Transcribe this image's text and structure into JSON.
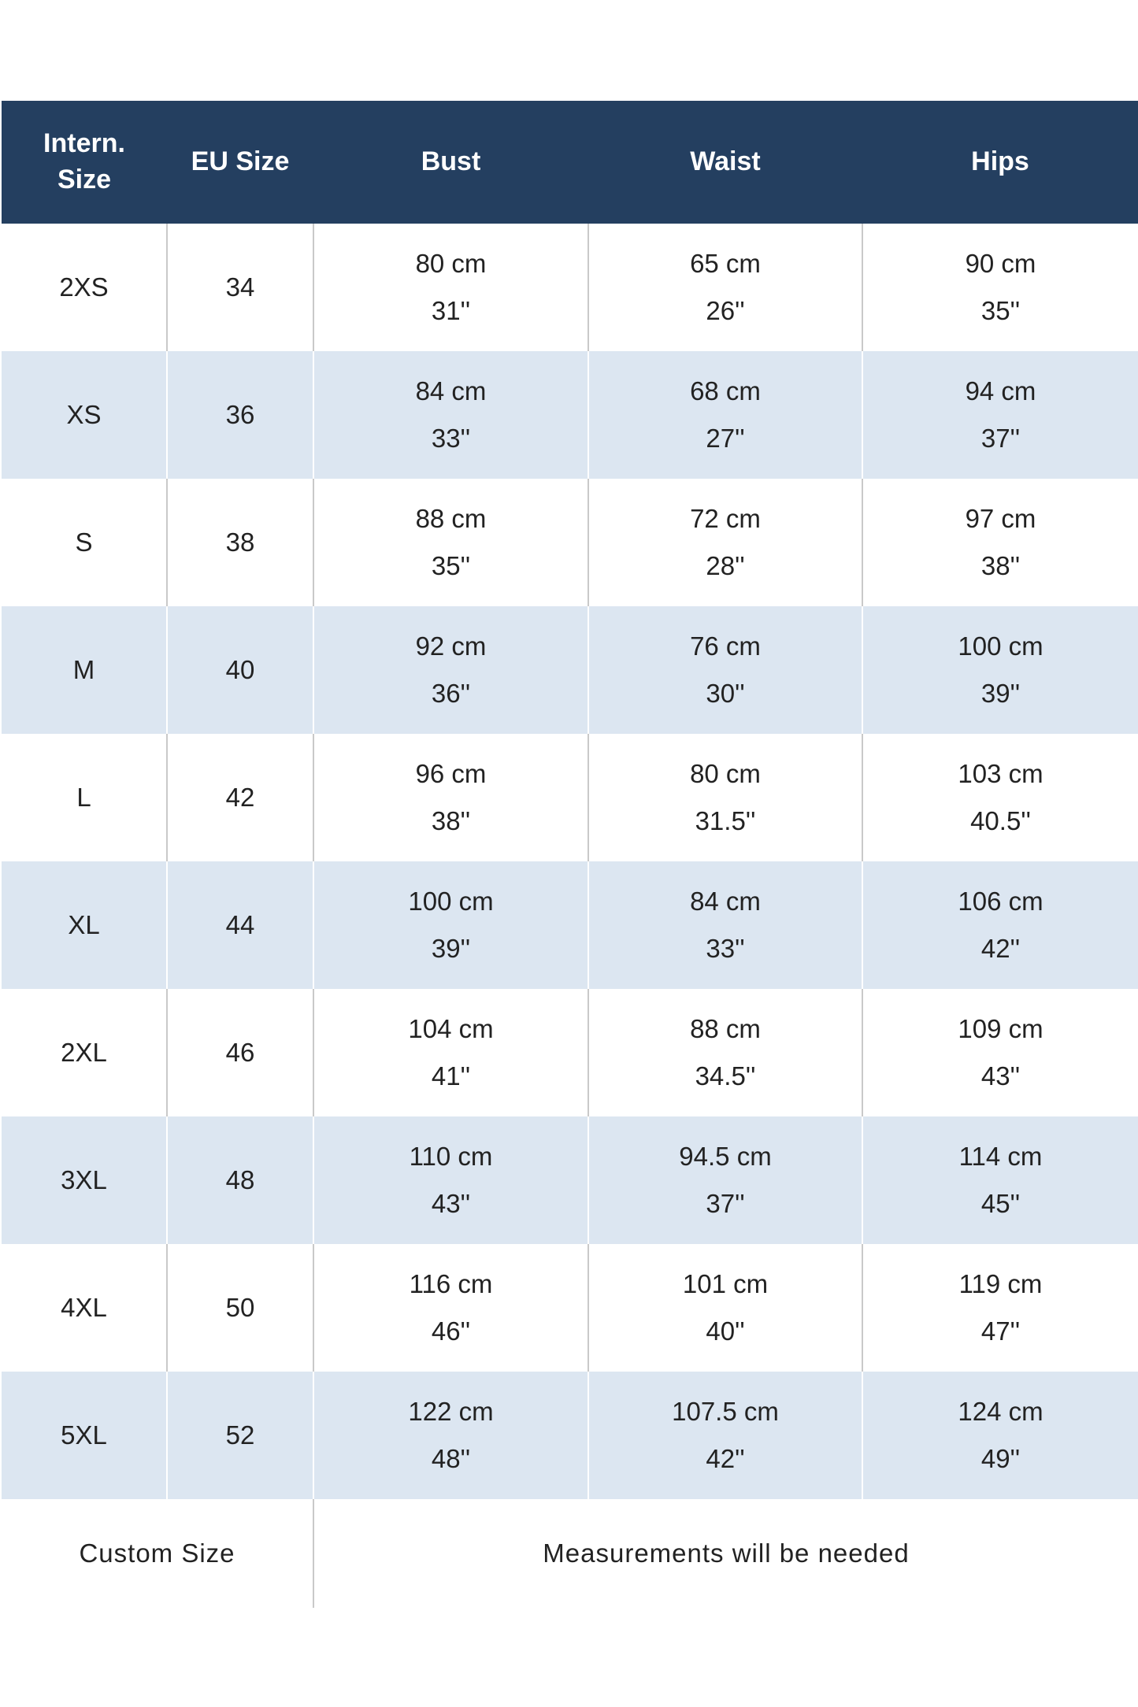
{
  "headers": [
    "Intern.\nSize",
    "EU Size",
    "Bust",
    "Waist",
    "Hips"
  ],
  "rows": [
    {
      "intern": "2XS",
      "eu": "34",
      "bust_cm": "80 cm",
      "bust_in": "31''",
      "waist_cm": "65 cm",
      "waist_in": "26''",
      "hips_cm": "90 cm",
      "hips_in": "35''"
    },
    {
      "intern": "XS",
      "eu": "36",
      "bust_cm": "84 cm",
      "bust_in": "33''",
      "waist_cm": "68 cm",
      "waist_in": "27''",
      "hips_cm": "94 cm",
      "hips_in": "37''"
    },
    {
      "intern": "S",
      "eu": "38",
      "bust_cm": "88 cm",
      "bust_in": "35''",
      "waist_cm": "72 cm",
      "waist_in": "28''",
      "hips_cm": "97 cm",
      "hips_in": "38''"
    },
    {
      "intern": "M",
      "eu": "40",
      "bust_cm": "92 cm",
      "bust_in": "36''",
      "waist_cm": "76 cm",
      "waist_in": "30''",
      "hips_cm": "100 cm",
      "hips_in": "39''"
    },
    {
      "intern": "L",
      "eu": "42",
      "bust_cm": "96 cm",
      "bust_in": "38''",
      "waist_cm": "80 cm",
      "waist_in": "31.5''",
      "hips_cm": "103 cm",
      "hips_in": "40.5''"
    },
    {
      "intern": "XL",
      "eu": "44",
      "bust_cm": "100 cm",
      "bust_in": "39''",
      "waist_cm": "84 cm",
      "waist_in": "33''",
      "hips_cm": "106 cm",
      "hips_in": "42''"
    },
    {
      "intern": "2XL",
      "eu": "46",
      "bust_cm": "104 cm",
      "bust_in": "41''",
      "waist_cm": "88 cm",
      "waist_in": "34.5''",
      "hips_cm": "109 cm",
      "hips_in": "43''"
    },
    {
      "intern": "3XL",
      "eu": "48",
      "bust_cm": "110 cm",
      "bust_in": "43''",
      "waist_cm": "94.5 cm",
      "waist_in": "37''",
      "hips_cm": "114 cm",
      "hips_in": "45''"
    },
    {
      "intern": "4XL",
      "eu": "50",
      "bust_cm": "116 cm",
      "bust_in": "46''",
      "waist_cm": "101 cm",
      "waist_in": "40''",
      "hips_cm": "119 cm",
      "hips_in": "47''"
    },
    {
      "intern": "5XL",
      "eu": "52",
      "bust_cm": "122 cm",
      "bust_in": "48''",
      "waist_cm": "107.5 cm",
      "waist_in": "42''",
      "hips_cm": "124 cm",
      "hips_in": "49''"
    }
  ],
  "custom": {
    "label": "Custom Size",
    "note": "Measurements will be needed"
  },
  "colors": {
    "header_bg": "#243f60",
    "alt_row_bg": "#dce6f1"
  }
}
